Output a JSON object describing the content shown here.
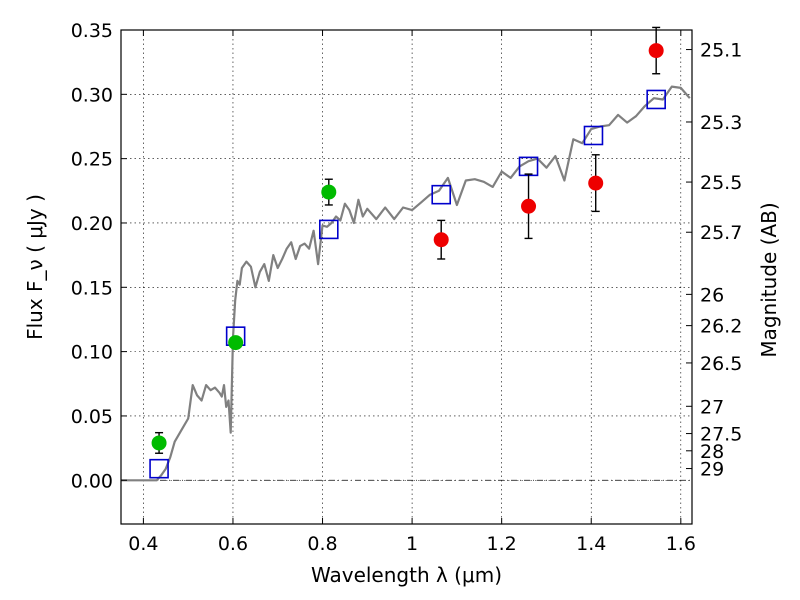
{
  "chart_data": {
    "type": "scatter",
    "title": "",
    "xlabel": "Wavelength  λ (μm)",
    "ylabel": "Flux  F_ν  ( μJy )",
    "ylabel_right": "Magnitude (AB)",
    "xlim": [
      0.35,
      1.625
    ],
    "ylim": [
      -0.034,
      0.35
    ],
    "grid": true,
    "legend": "none",
    "x_ticks": [
      {
        "value": 0.4,
        "label": "0.4"
      },
      {
        "value": 0.6,
        "label": "0.6"
      },
      {
        "value": 0.8,
        "label": "0.8"
      },
      {
        "value": 1.0,
        "label": "1"
      },
      {
        "value": 1.2,
        "label": "1.2"
      },
      {
        "value": 1.4,
        "label": "1.4"
      },
      {
        "value": 1.6,
        "label": "1.6"
      }
    ],
    "y_ticks": [
      {
        "value": 0.0,
        "label": "0.00"
      },
      {
        "value": 0.05,
        "label": "0.05"
      },
      {
        "value": 0.1,
        "label": "0.10"
      },
      {
        "value": 0.15,
        "label": "0.15"
      },
      {
        "value": 0.2,
        "label": "0.20"
      },
      {
        "value": 0.25,
        "label": "0.25"
      },
      {
        "value": 0.3,
        "label": "0.30"
      },
      {
        "value": 0.35,
        "label": "0.35"
      }
    ],
    "mag_ticks": [
      {
        "flux": 0.3348,
        "label": "25.1"
      },
      {
        "flux": 0.2785,
        "label": "25.3"
      },
      {
        "flux": 0.2318,
        "label": "25.5"
      },
      {
        "flux": 0.1928,
        "label": "25.7"
      },
      {
        "flux": 0.1445,
        "label": "26"
      },
      {
        "flux": 0.1202,
        "label": "26.2"
      },
      {
        "flux": 0.0912,
        "label": "26.5"
      },
      {
        "flux": 0.0575,
        "label": "27"
      },
      {
        "flux": 0.0363,
        "label": "27.5"
      },
      {
        "flux": 0.0229,
        "label": "28"
      },
      {
        "flux": 0.0091,
        "label": "29"
      }
    ],
    "colors": {
      "model": "#808080",
      "optical": "#00bb00",
      "infrared": "#ee0000",
      "model_flux": "#0000cc",
      "errorbar": "#000000"
    },
    "series": [
      {
        "kind": "model_spectrum",
        "x": [
          0.35,
          0.43,
          0.44,
          0.45,
          0.46,
          0.47,
          0.48,
          0.49,
          0.5,
          0.51,
          0.52,
          0.53,
          0.54,
          0.55,
          0.56,
          0.57,
          0.575,
          0.58,
          0.585,
          0.59,
          0.595,
          0.6,
          0.605,
          0.61,
          0.615,
          0.62,
          0.63,
          0.64,
          0.65,
          0.66,
          0.67,
          0.68,
          0.69,
          0.7,
          0.71,
          0.72,
          0.73,
          0.74,
          0.75,
          0.76,
          0.77,
          0.78,
          0.79,
          0.8,
          0.81,
          0.82,
          0.83,
          0.84,
          0.85,
          0.86,
          0.87,
          0.88,
          0.89,
          0.9,
          0.92,
          0.94,
          0.96,
          0.98,
          1.0,
          1.02,
          1.04,
          1.06,
          1.08,
          1.1,
          1.12,
          1.14,
          1.16,
          1.18,
          1.2,
          1.22,
          1.24,
          1.26,
          1.28,
          1.3,
          1.32,
          1.34,
          1.36,
          1.38,
          1.4,
          1.42,
          1.44,
          1.46,
          1.48,
          1.5,
          1.52,
          1.54,
          1.56,
          1.58,
          1.6,
          1.62
        ],
        "y": [
          0.0,
          0.0,
          0.004,
          0.009,
          0.018,
          0.03,
          0.036,
          0.042,
          0.048,
          0.074,
          0.066,
          0.062,
          0.074,
          0.07,
          0.072,
          0.068,
          0.065,
          0.074,
          0.057,
          0.062,
          0.037,
          0.111,
          0.14,
          0.155,
          0.152,
          0.165,
          0.17,
          0.166,
          0.15,
          0.162,
          0.168,
          0.155,
          0.175,
          0.165,
          0.172,
          0.18,
          0.185,
          0.172,
          0.182,
          0.184,
          0.18,
          0.194,
          0.168,
          0.198,
          0.197,
          0.2,
          0.205,
          0.202,
          0.215,
          0.21,
          0.2,
          0.218,
          0.205,
          0.211,
          0.203,
          0.212,
          0.203,
          0.212,
          0.21,
          0.216,
          0.222,
          0.225,
          0.235,
          0.214,
          0.233,
          0.234,
          0.232,
          0.228,
          0.24,
          0.235,
          0.244,
          0.248,
          0.25,
          0.243,
          0.252,
          0.233,
          0.265,
          0.262,
          0.273,
          0.275,
          0.276,
          0.284,
          0.278,
          0.283,
          0.291,
          0.297,
          0.296,
          0.306,
          0.305,
          0.297
        ]
      },
      {
        "kind": "observed_optical",
        "points": [
          {
            "x": 0.435,
            "y": 0.029,
            "err": 0.008
          },
          {
            "x": 0.606,
            "y": 0.107,
            "err": 0.0
          },
          {
            "x": 0.814,
            "y": 0.224,
            "err": 0.01
          }
        ]
      },
      {
        "kind": "observed_infrared",
        "points": [
          {
            "x": 1.065,
            "y": 0.187,
            "err": 0.015
          },
          {
            "x": 1.26,
            "y": 0.213,
            "err": 0.025
          },
          {
            "x": 1.41,
            "y": 0.231,
            "err": 0.022
          },
          {
            "x": 1.545,
            "y": 0.334,
            "err": 0.018
          }
        ]
      },
      {
        "kind": "model_flux",
        "points": [
          {
            "x": 0.435,
            "y": 0.009
          },
          {
            "x": 0.606,
            "y": 0.112
          },
          {
            "x": 0.814,
            "y": 0.195
          },
          {
            "x": 1.065,
            "y": 0.222
          },
          {
            "x": 1.26,
            "y": 0.244
          },
          {
            "x": 1.405,
            "y": 0.268
          },
          {
            "x": 1.545,
            "y": 0.296
          }
        ]
      }
    ]
  }
}
